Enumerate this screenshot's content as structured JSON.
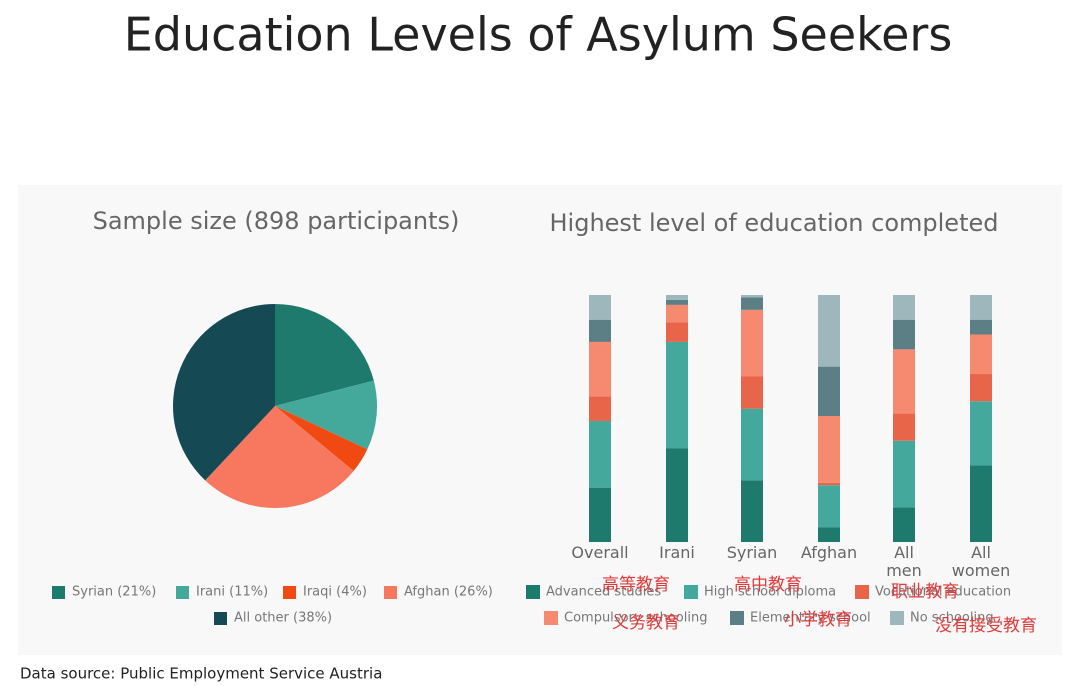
{
  "title": "Education Levels of Asylum Seekers",
  "source": "Data source: Public Employment Service Austria",
  "chart_data": [
    {
      "type": "pie",
      "title": "Sample size (898 participants)",
      "categories": [
        "Syrian (21%)",
        "Irani (11%)",
        "Iraqi (4%)",
        "Afghan (26%)",
        "All other (38%)"
      ],
      "values": [
        21,
        11,
        4,
        26,
        38
      ],
      "colors": [
        "#1f7a6e",
        "#44a89b",
        "#f04a12",
        "#f7785f",
        "#154a55"
      ]
    },
    {
      "type": "stacked_bar",
      "title": "Highest level of education completed",
      "categories": [
        "Overall",
        "Irani",
        "Syrian",
        "Afghan",
        "All men",
        "All women"
      ],
      "ylim": [
        0,
        100
      ],
      "series": [
        {
          "name": "Advanced studies",
          "color": "#1f7a6e",
          "values": [
            22,
            38,
            25,
            6,
            14,
            31
          ]
        },
        {
          "name": "High school diploma",
          "color": "#45a89c",
          "values": [
            27,
            43,
            29,
            17,
            27,
            26
          ]
        },
        {
          "name": "Vocational education",
          "color": "#e8654a",
          "values": [
            10,
            8,
            13,
            1,
            11,
            11
          ]
        },
        {
          "name": "Compulsory schooling",
          "color": "#f58a70",
          "values": [
            22,
            7,
            27,
            27,
            26,
            16
          ]
        },
        {
          "name": "Elementary school",
          "color": "#5b7f85",
          "values": [
            9,
            2,
            5,
            20,
            12,
            6
          ]
        },
        {
          "name": "No schooling",
          "color": "#9db7bc",
          "values": [
            10,
            2,
            1,
            29,
            10,
            10
          ]
        }
      ],
      "annotations": [
        "高等教育",
        "高中教育",
        "职业教育",
        "义务教育",
        "小学教育",
        "没有接受教育"
      ]
    }
  ]
}
